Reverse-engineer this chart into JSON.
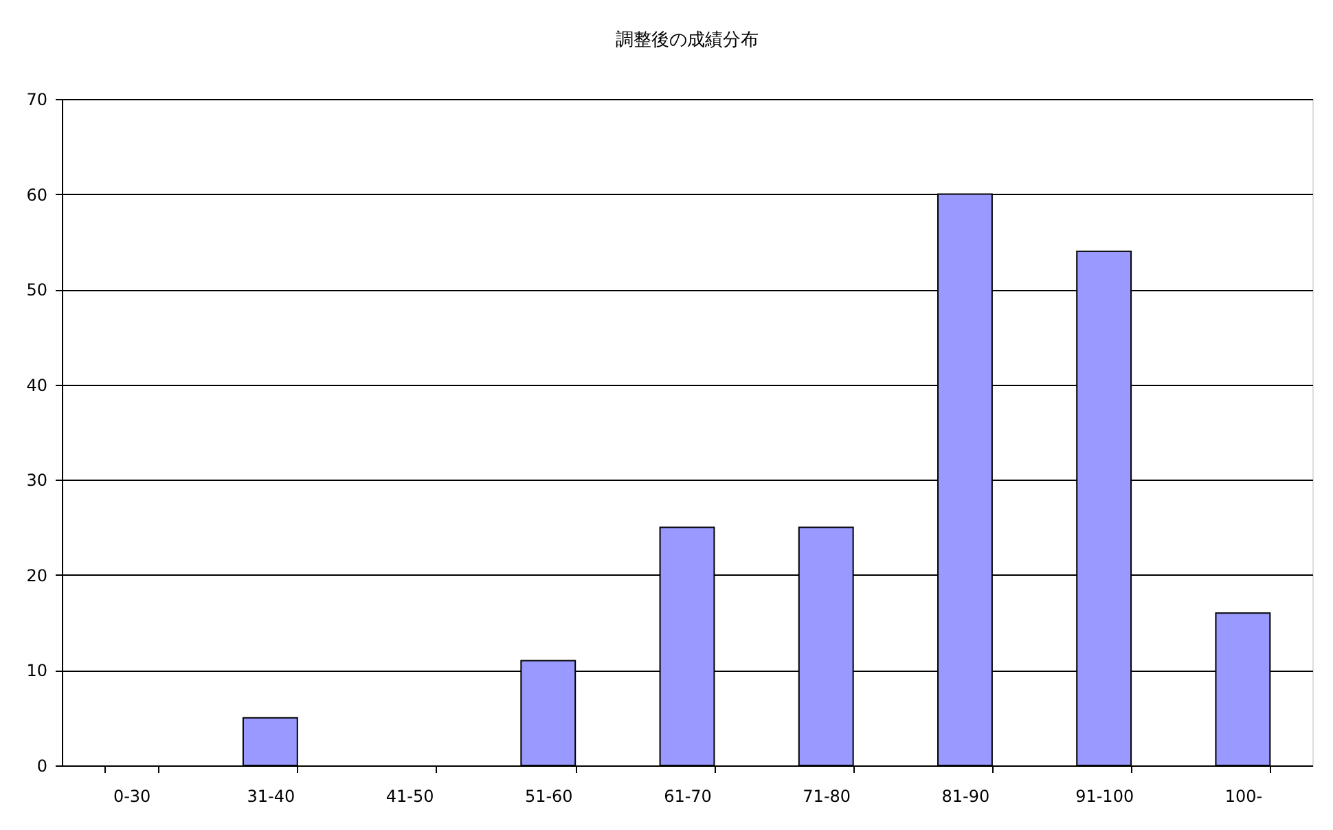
{
  "chart_data": {
    "type": "bar",
    "title": "調整後の成績分布",
    "categories": [
      "0-30",
      "31-40",
      "41-50",
      "51-60",
      "61-70",
      "71-80",
      "81-90",
      "91-100",
      "100-"
    ],
    "values": [
      0,
      5,
      0,
      11,
      25,
      25,
      60,
      54,
      16
    ],
    "color": "#9999ff",
    "ylim": [
      0,
      70
    ],
    "yticks": [
      0,
      10,
      20,
      30,
      40,
      50,
      60,
      70
    ],
    "grid": "y"
  }
}
